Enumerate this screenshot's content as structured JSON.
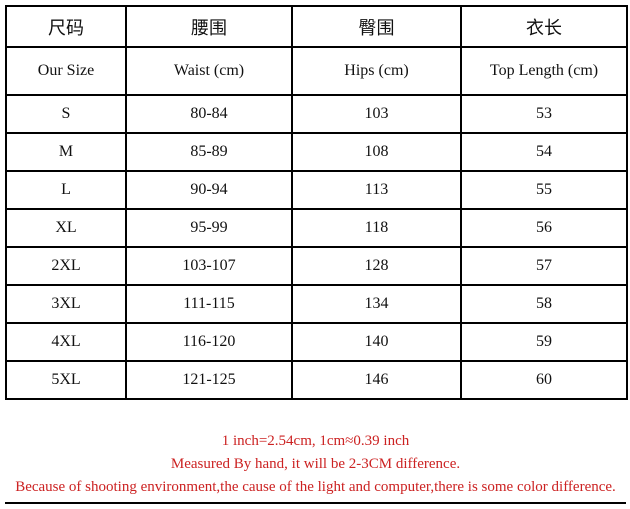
{
  "table": {
    "columns": [
      {
        "zh": "尺码",
        "en": "Our Size"
      },
      {
        "zh": "腰围",
        "en": "Waist (cm)"
      },
      {
        "zh": "臀围",
        "en": "Hips (cm)"
      },
      {
        "zh": "衣长",
        "en": "Top Length (cm)"
      }
    ],
    "rows": [
      {
        "size": "S",
        "waist": "80-84",
        "hips": "103",
        "top_length": "53"
      },
      {
        "size": "M",
        "waist": "85-89",
        "hips": "108",
        "top_length": "54"
      },
      {
        "size": "L",
        "waist": "90-94",
        "hips": "113",
        "top_length": "55"
      },
      {
        "size": "XL",
        "waist": "95-99",
        "hips": "118",
        "top_length": "56"
      },
      {
        "size": "2XL",
        "waist": "103-107",
        "hips": "128",
        "top_length": "57"
      },
      {
        "size": "3XL",
        "waist": "111-115",
        "hips": "134",
        "top_length": "58"
      },
      {
        "size": "4XL",
        "waist": "116-120",
        "hips": "140",
        "top_length": "59"
      },
      {
        "size": "5XL",
        "waist": "121-125",
        "hips": "146",
        "top_length": "60"
      }
    ]
  },
  "footer": {
    "lines": [
      "1 inch=2.54cm, 1cm≈0.39 inch",
      "Measured By hand, it will be 2-3CM difference.",
      "Because of shooting environment,the cause of the light and computer,there is some color difference."
    ]
  },
  "colors": {
    "border": "#000000",
    "table_text": "#111111",
    "note_red": "#cc2222",
    "background": "#ffffff"
  }
}
